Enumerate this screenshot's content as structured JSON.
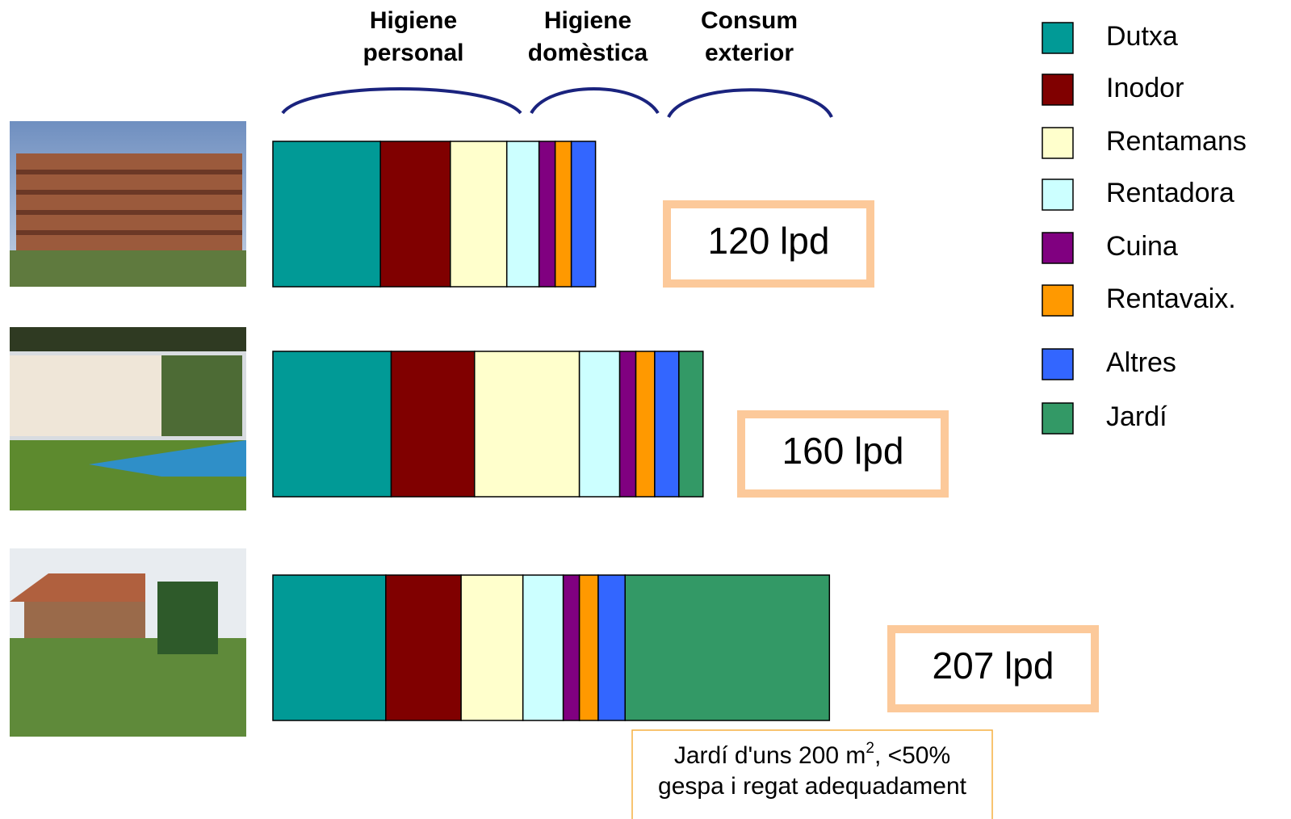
{
  "chart_data": {
    "type": "bar",
    "orientation": "horizontal",
    "stacked": true,
    "categories": [
      null,
      null,
      null
    ],
    "groups": [
      [
        "Higiene",
        "personal"
      ],
      [
        "Higiene",
        "domèstica"
      ],
      [
        "Consum",
        "exterior"
      ]
    ],
    "series": [
      {
        "name": "Dutxa",
        "color": "#019a96",
        "values": [
          40,
          44,
          42
        ]
      },
      {
        "name": "Inodor",
        "color": "#800000",
        "values": [
          26,
          31,
          28
        ]
      },
      {
        "name": "Rentamans",
        "color": "#ffffcc",
        "values": [
          21,
          39,
          23
        ]
      },
      {
        "name": "Rentadora",
        "color": "#ccffff",
        "values": [
          12,
          15,
          15
        ]
      },
      {
        "name": "Cuina",
        "color": "#800080",
        "values": [
          6,
          6,
          6
        ]
      },
      {
        "name": "Rentavaix.",
        "color": "#ff9900",
        "values": [
          6,
          7,
          7
        ]
      },
      {
        "name": "Altres",
        "color": "#3366ff",
        "values": [
          9,
          9,
          10
        ]
      },
      {
        "name": "Jardí",
        "color": "#339966",
        "values": [
          0,
          9,
          76
        ]
      }
    ],
    "totals": [
      "120 lpd",
      "160 lpd",
      "207 lpd"
    ],
    "note": [
      "Jardí d'uns 200 m",
      "2",
      ", <50%",
      "gespa i regat adequadament"
    ]
  }
}
